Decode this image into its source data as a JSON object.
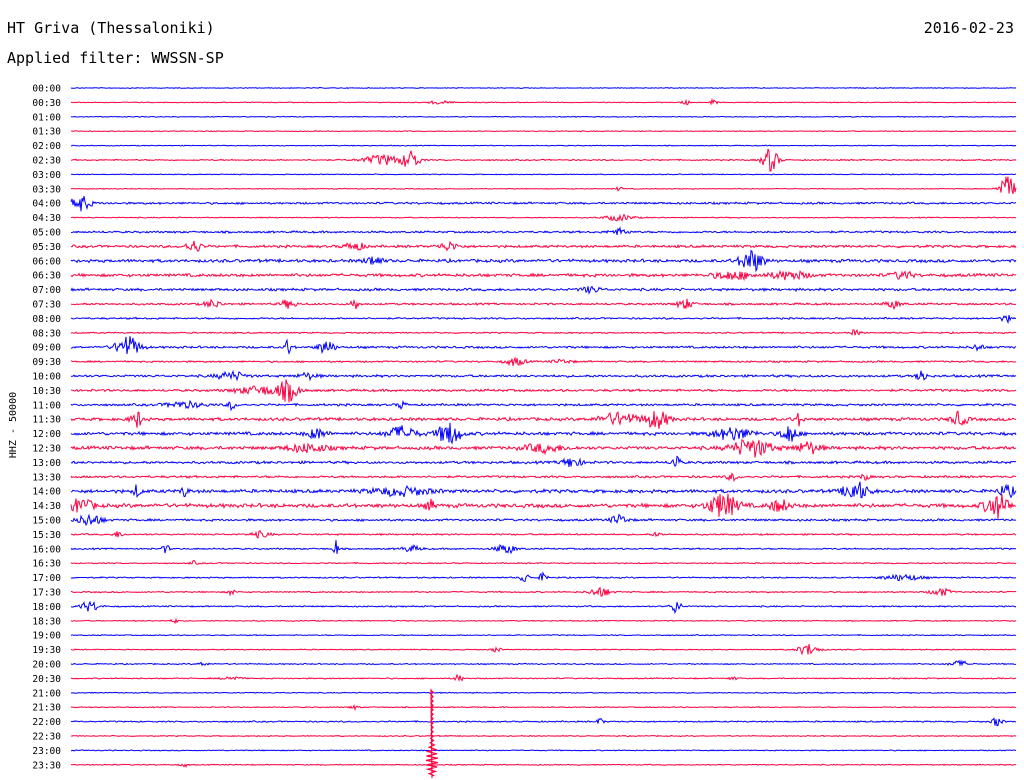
{
  "header": {
    "station": "HT Griva (Thessaloniki)",
    "date": "2016-02-23",
    "filter": "Applied filter: WWSSN-SP"
  },
  "chart_data": {
    "type": "line",
    "title": "HT Griva (Thessaloniki)",
    "ylabel": "HHZ - 50000",
    "colors": {
      "odd": "#0000ff",
      "even": "#ff0040"
    },
    "rows": [
      {
        "label": "00:00",
        "color": "#0000ff",
        "noise": 0.5,
        "events": []
      },
      {
        "label": "00:30",
        "color": "#ff0040",
        "noise": 0.5,
        "events": [
          {
            "t": 0.39,
            "a": 2,
            "w": 0.01
          },
          {
            "t": 0.65,
            "a": 3,
            "w": 0.004
          },
          {
            "t": 0.68,
            "a": 5,
            "w": 0.003
          }
        ]
      },
      {
        "label": "01:00",
        "color": "#0000ff",
        "noise": 0.5,
        "events": []
      },
      {
        "label": "01:30",
        "color": "#ff0040",
        "noise": 0.5,
        "events": []
      },
      {
        "label": "02:00",
        "color": "#0000ff",
        "noise": 0.5,
        "events": []
      },
      {
        "label": "02:30",
        "color": "#ff0040",
        "noise": 0.8,
        "events": [
          {
            "t": 0.33,
            "a": 5,
            "w": 0.02
          },
          {
            "t": 0.36,
            "a": 10,
            "w": 0.008
          },
          {
            "t": 0.74,
            "a": 12,
            "w": 0.008
          }
        ]
      },
      {
        "label": "03:00",
        "color": "#0000ff",
        "noise": 0.5,
        "events": []
      },
      {
        "label": "03:30",
        "color": "#ff0040",
        "noise": 0.5,
        "events": [
          {
            "t": 0.58,
            "a": 2,
            "w": 0.004
          },
          {
            "t": 0.99,
            "a": 14,
            "w": 0.008
          }
        ]
      },
      {
        "label": "04:00",
        "color": "#0000ff",
        "noise": 1.2,
        "events": [
          {
            "t": 0.01,
            "a": 8,
            "w": 0.01
          }
        ]
      },
      {
        "label": "04:30",
        "color": "#ff0040",
        "noise": 0.6,
        "events": [
          {
            "t": 0.58,
            "a": 3,
            "w": 0.015
          }
        ]
      },
      {
        "label": "05:00",
        "color": "#0000ff",
        "noise": 1.2,
        "events": [
          {
            "t": 0.58,
            "a": 3,
            "w": 0.01
          }
        ]
      },
      {
        "label": "05:30",
        "color": "#ff0040",
        "noise": 1.5,
        "events": [
          {
            "t": 0.13,
            "a": 6,
            "w": 0.008
          },
          {
            "t": 0.3,
            "a": 4,
            "w": 0.01
          },
          {
            "t": 0.4,
            "a": 4,
            "w": 0.01
          }
        ]
      },
      {
        "label": "06:00",
        "color": "#0000ff",
        "noise": 1.8,
        "events": [
          {
            "t": 0.32,
            "a": 5,
            "w": 0.008
          },
          {
            "t": 0.72,
            "a": 11,
            "w": 0.012
          }
        ]
      },
      {
        "label": "06:30",
        "color": "#ff0040",
        "noise": 1.8,
        "events": [
          {
            "t": 0.7,
            "a": 4,
            "w": 0.02
          },
          {
            "t": 0.76,
            "a": 4,
            "w": 0.02
          },
          {
            "t": 0.88,
            "a": 4,
            "w": 0.01
          }
        ]
      },
      {
        "label": "07:00",
        "color": "#0000ff",
        "noise": 1.5,
        "events": [
          {
            "t": 0.55,
            "a": 3,
            "w": 0.01
          }
        ]
      },
      {
        "label": "07:30",
        "color": "#ff0040",
        "noise": 1.2,
        "events": [
          {
            "t": 0.15,
            "a": 4,
            "w": 0.008
          },
          {
            "t": 0.23,
            "a": 4,
            "w": 0.008
          },
          {
            "t": 0.3,
            "a": 6,
            "w": 0.004
          },
          {
            "t": 0.65,
            "a": 5,
            "w": 0.008
          },
          {
            "t": 0.87,
            "a": 4,
            "w": 0.008
          }
        ]
      },
      {
        "label": "08:00",
        "color": "#0000ff",
        "noise": 1.0,
        "events": [
          {
            "t": 0.99,
            "a": 4,
            "w": 0.005
          }
        ]
      },
      {
        "label": "08:30",
        "color": "#ff0040",
        "noise": 0.8,
        "events": [
          {
            "t": 0.83,
            "a": 3,
            "w": 0.005
          }
        ]
      },
      {
        "label": "09:00",
        "color": "#0000ff",
        "noise": 1.3,
        "events": [
          {
            "t": 0.06,
            "a": 11,
            "w": 0.012
          },
          {
            "t": 0.23,
            "a": 8,
            "w": 0.004
          },
          {
            "t": 0.27,
            "a": 7,
            "w": 0.008
          },
          {
            "t": 0.96,
            "a": 4,
            "w": 0.005
          }
        ]
      },
      {
        "label": "09:30",
        "color": "#ff0040",
        "noise": 1.0,
        "events": [
          {
            "t": 0.47,
            "a": 4,
            "w": 0.01
          },
          {
            "t": 0.52,
            "a": 2,
            "w": 0.01
          }
        ]
      },
      {
        "label": "10:00",
        "color": "#0000ff",
        "noise": 1.4,
        "events": [
          {
            "t": 0.17,
            "a": 4,
            "w": 0.015
          },
          {
            "t": 0.25,
            "a": 3,
            "w": 0.01
          },
          {
            "t": 0.9,
            "a": 9,
            "w": 0.004
          }
        ]
      },
      {
        "label": "10:30",
        "color": "#ff0040",
        "noise": 1.4,
        "events": [
          {
            "t": 0.2,
            "a": 4,
            "w": 0.025
          },
          {
            "t": 0.23,
            "a": 10,
            "w": 0.01
          }
        ]
      },
      {
        "label": "11:00",
        "color": "#0000ff",
        "noise": 1.3,
        "events": [
          {
            "t": 0.12,
            "a": 3,
            "w": 0.02
          },
          {
            "t": 0.17,
            "a": 5,
            "w": 0.004
          },
          {
            "t": 0.35,
            "a": 4,
            "w": 0.004
          }
        ]
      },
      {
        "label": "11:30",
        "color": "#ff0040",
        "noise": 1.8,
        "events": [
          {
            "t": 0.07,
            "a": 8,
            "w": 0.006
          },
          {
            "t": 0.58,
            "a": 6,
            "w": 0.02
          },
          {
            "t": 0.62,
            "a": 9,
            "w": 0.012
          },
          {
            "t": 0.77,
            "a": 6,
            "w": 0.005
          },
          {
            "t": 0.94,
            "a": 7,
            "w": 0.008
          }
        ]
      },
      {
        "label": "12:00",
        "color": "#0000ff",
        "noise": 1.9,
        "events": [
          {
            "t": 0.26,
            "a": 5,
            "w": 0.01
          },
          {
            "t": 0.35,
            "a": 7,
            "w": 0.015
          },
          {
            "t": 0.4,
            "a": 11,
            "w": 0.012
          },
          {
            "t": 0.7,
            "a": 6,
            "w": 0.02
          },
          {
            "t": 0.76,
            "a": 9,
            "w": 0.008
          }
        ]
      },
      {
        "label": "12:30",
        "color": "#ff0040",
        "noise": 2.0,
        "events": [
          {
            "t": 0.25,
            "a": 4,
            "w": 0.02
          },
          {
            "t": 0.5,
            "a": 4,
            "w": 0.02
          },
          {
            "t": 0.72,
            "a": 9,
            "w": 0.02
          },
          {
            "t": 0.78,
            "a": 6,
            "w": 0.012
          }
        ]
      },
      {
        "label": "13:00",
        "color": "#0000ff",
        "noise": 1.5,
        "events": [
          {
            "t": 0.53,
            "a": 5,
            "w": 0.01
          },
          {
            "t": 0.64,
            "a": 8,
            "w": 0.004
          }
        ]
      },
      {
        "label": "13:30",
        "color": "#ff0040",
        "noise": 1.3,
        "events": [
          {
            "t": 0.7,
            "a": 4,
            "w": 0.005
          },
          {
            "t": 0.84,
            "a": 3,
            "w": 0.005
          }
        ]
      },
      {
        "label": "14:00",
        "color": "#0000ff",
        "noise": 2.0,
        "events": [
          {
            "t": 0.07,
            "a": 6,
            "w": 0.004
          },
          {
            "t": 0.12,
            "a": 5,
            "w": 0.004
          },
          {
            "t": 0.35,
            "a": 4,
            "w": 0.03
          },
          {
            "t": 0.83,
            "a": 10,
            "w": 0.012
          },
          {
            "t": 0.99,
            "a": 6,
            "w": 0.008
          }
        ]
      },
      {
        "label": "14:30",
        "color": "#ff0040",
        "noise": 2.3,
        "events": [
          {
            "t": 0.01,
            "a": 7,
            "w": 0.012
          },
          {
            "t": 0.38,
            "a": 6,
            "w": 0.004
          },
          {
            "t": 0.69,
            "a": 12,
            "w": 0.015
          },
          {
            "t": 0.75,
            "a": 6,
            "w": 0.01
          },
          {
            "t": 0.98,
            "a": 12,
            "w": 0.012
          }
        ]
      },
      {
        "label": "15:00",
        "color": "#0000ff",
        "noise": 1.3,
        "events": [
          {
            "t": 0.02,
            "a": 6,
            "w": 0.012
          },
          {
            "t": 0.58,
            "a": 5,
            "w": 0.008
          }
        ]
      },
      {
        "label": "15:30",
        "color": "#ff0040",
        "noise": 0.9,
        "events": [
          {
            "t": 0.05,
            "a": 3,
            "w": 0.005
          },
          {
            "t": 0.2,
            "a": 3,
            "w": 0.01
          },
          {
            "t": 0.62,
            "a": 2,
            "w": 0.005
          }
        ]
      },
      {
        "label": "16:00",
        "color": "#0000ff",
        "noise": 0.9,
        "events": [
          {
            "t": 0.1,
            "a": 4,
            "w": 0.004
          },
          {
            "t": 0.28,
            "a": 14,
            "w": 0.002
          },
          {
            "t": 0.36,
            "a": 3,
            "w": 0.01
          },
          {
            "t": 0.46,
            "a": 5,
            "w": 0.01
          }
        ]
      },
      {
        "label": "16:30",
        "color": "#ff0040",
        "noise": 0.7,
        "events": [
          {
            "t": 0.13,
            "a": 2,
            "w": 0.004
          }
        ]
      },
      {
        "label": "17:00",
        "color": "#0000ff",
        "noise": 0.8,
        "events": [
          {
            "t": 0.48,
            "a": 6,
            "w": 0.004
          },
          {
            "t": 0.5,
            "a": 5,
            "w": 0.004
          },
          {
            "t": 0.88,
            "a": 3,
            "w": 0.02
          }
        ]
      },
      {
        "label": "17:30",
        "color": "#ff0040",
        "noise": 0.8,
        "events": [
          {
            "t": 0.17,
            "a": 3,
            "w": 0.004
          },
          {
            "t": 0.56,
            "a": 5,
            "w": 0.01
          },
          {
            "t": 0.92,
            "a": 4,
            "w": 0.01
          }
        ]
      },
      {
        "label": "18:00",
        "color": "#0000ff",
        "noise": 0.8,
        "events": [
          {
            "t": 0.02,
            "a": 5,
            "w": 0.01
          },
          {
            "t": 0.64,
            "a": 7,
            "w": 0.005
          }
        ]
      },
      {
        "label": "18:30",
        "color": "#ff0040",
        "noise": 0.6,
        "events": [
          {
            "t": 0.11,
            "a": 2,
            "w": 0.004
          }
        ]
      },
      {
        "label": "19:00",
        "color": "#0000ff",
        "noise": 0.6,
        "events": []
      },
      {
        "label": "19:30",
        "color": "#ff0040",
        "noise": 0.6,
        "events": [
          {
            "t": 0.45,
            "a": 3,
            "w": 0.004
          },
          {
            "t": 0.78,
            "a": 6,
            "w": 0.01
          }
        ]
      },
      {
        "label": "20:00",
        "color": "#0000ff",
        "noise": 0.7,
        "events": [
          {
            "t": 0.14,
            "a": 2,
            "w": 0.005
          },
          {
            "t": 0.94,
            "a": 3,
            "w": 0.01
          }
        ]
      },
      {
        "label": "20:30",
        "color": "#ff0040",
        "noise": 0.7,
        "events": [
          {
            "t": 0.17,
            "a": 2,
            "w": 0.01
          },
          {
            "t": 0.41,
            "a": 4,
            "w": 0.004
          },
          {
            "t": 0.7,
            "a": 2,
            "w": 0.004
          }
        ]
      },
      {
        "label": "21:00",
        "color": "#0000ff",
        "noise": 0.6,
        "events": []
      },
      {
        "label": "21:30",
        "color": "#ff0040",
        "noise": 0.6,
        "events": [
          {
            "t": 0.3,
            "a": 2,
            "w": 0.005
          }
        ]
      },
      {
        "label": "22:00",
        "color": "#0000ff",
        "noise": 0.8,
        "events": [
          {
            "t": 0.56,
            "a": 3,
            "w": 0.004
          },
          {
            "t": 0.98,
            "a": 5,
            "w": 0.005
          }
        ]
      },
      {
        "label": "22:30",
        "color": "#ff0040",
        "noise": 0.6,
        "events": []
      },
      {
        "label": "23:00",
        "color": "#0000ff",
        "noise": 0.6,
        "events": []
      },
      {
        "label": "23:30",
        "color": "#ff0040",
        "noise": 0.6,
        "events": [
          {
            "t": 0.12,
            "a": 2,
            "w": 0.004
          }
        ]
      }
    ]
  }
}
